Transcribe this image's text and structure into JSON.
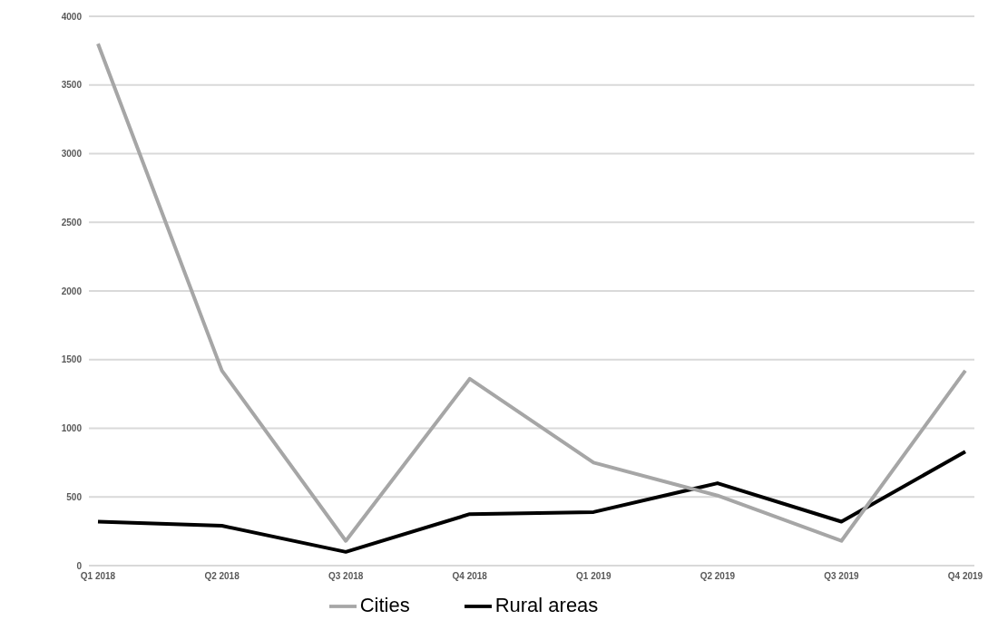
{
  "chart_data": {
    "type": "line",
    "categories": [
      "Q1 2018",
      "Q2 2018",
      "Q3 2018",
      "Q4 2018",
      "Q1 2019",
      "Q2 2019",
      "Q3 2019",
      "Q4 2019"
    ],
    "series": [
      {
        "name": "Rural areas",
        "color": "#000000",
        "values": [
          320,
          290,
          100,
          375,
          390,
          600,
          320,
          830
        ]
      },
      {
        "name": "Cities",
        "color": "#a6a6a6",
        "values": [
          3800,
          1420,
          180,
          1360,
          750,
          510,
          180,
          1420
        ]
      }
    ],
    "ylim": [
      0,
      4000
    ],
    "yticks": [
      0,
      500,
      1000,
      1500,
      2000,
      2500,
      3000,
      3500,
      4000
    ],
    "grid": "y",
    "legend": "bottom",
    "marker": "none"
  }
}
